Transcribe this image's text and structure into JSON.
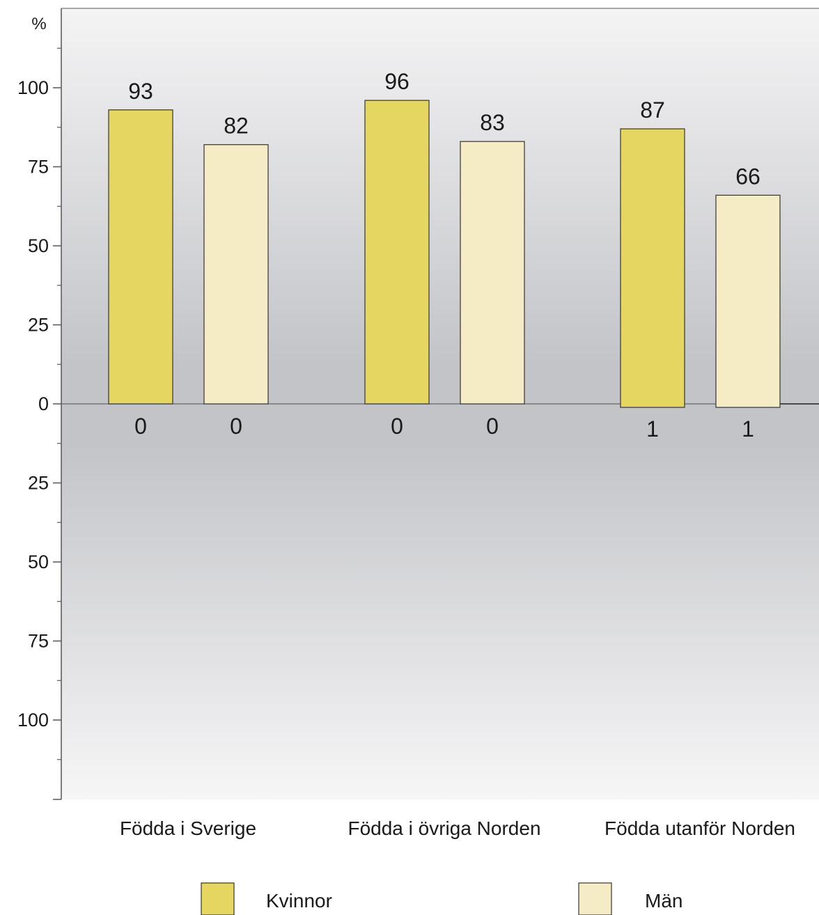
{
  "chart_data": {
    "type": "bar",
    "ylabel": "%",
    "categories": [
      "Födda i Sverige",
      "Födda i övriga Norden",
      "Födda utanför Norden"
    ],
    "ylim": [
      -100,
      100
    ],
    "yticks": [
      100,
      75,
      50,
      25,
      0,
      -25,
      -50,
      -75,
      -100
    ],
    "ytick_labels": [
      "100",
      "75",
      "50",
      "25",
      "0",
      "25",
      "50",
      "75",
      "100"
    ],
    "series": [
      {
        "name": "Kvinnor",
        "color": "#e5d662",
        "up_values": [
          93,
          96,
          87
        ],
        "down_values": [
          0,
          0,
          1
        ]
      },
      {
        "name": "Män",
        "color": "#f5ecc6",
        "up_values": [
          82,
          83,
          66
        ],
        "down_values": [
          0,
          0,
          1
        ]
      }
    ],
    "grid": false,
    "legend_position": "bottom"
  },
  "legend": {
    "items": [
      {
        "label": "Kvinnor",
        "color": "#e5d662"
      },
      {
        "label": "Män",
        "color": "#f5ecc6"
      }
    ]
  }
}
